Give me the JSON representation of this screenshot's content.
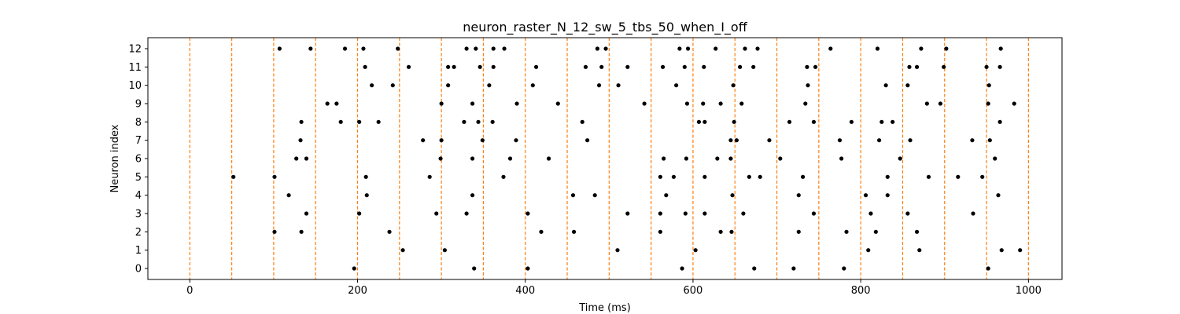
{
  "chart_data": {
    "type": "scatter",
    "title": "neuron_raster_N_12_sw_5_tbs_50_when_I_off",
    "xlabel": "Time (ms)",
    "ylabel": "Neuron index",
    "xlim": [
      -50,
      1040
    ],
    "ylim": [
      -0.6,
      12.6
    ],
    "x_ticks": [
      0,
      200,
      400,
      600,
      800,
      1000
    ],
    "y_ticks": [
      0,
      1,
      2,
      3,
      4,
      5,
      6,
      7,
      8,
      9,
      10,
      11,
      12
    ],
    "grid": false,
    "vlines": {
      "x": [
        0,
        50,
        100,
        150,
        200,
        250,
        300,
        350,
        400,
        450,
        500,
        550,
        600,
        650,
        700,
        750,
        800,
        850,
        900,
        950,
        1000
      ],
      "color": "#ff7f0e",
      "style": "dashed"
    },
    "marker_color": "#000000",
    "spikes": [
      {
        "neuron": 12,
        "times": [
          107,
          144,
          185,
          207,
          248,
          330,
          341,
          362,
          375,
          486,
          496,
          584,
          594,
          627,
          662,
          677,
          764,
          820,
          872,
          902,
          967
        ]
      },
      {
        "neuron": 11,
        "times": [
          209,
          261,
          308,
          315,
          346,
          362,
          413,
          472,
          491,
          522,
          564,
          590,
          613,
          656,
          672,
          736,
          746,
          867,
          858,
          899,
          950,
          966
        ]
      },
      {
        "neuron": 10,
        "times": [
          217,
          242,
          308,
          357,
          409,
          488,
          511,
          580,
          648,
          737,
          830,
          856,
          953
        ]
      },
      {
        "neuron": 9,
        "times": [
          164,
          175,
          300,
          337,
          390,
          439,
          542,
          593,
          612,
          633,
          658,
          734,
          879,
          895,
          952,
          983
        ]
      },
      {
        "neuron": 8,
        "times": [
          133,
          180,
          202,
          225,
          327,
          344,
          361,
          468,
          607,
          614,
          649,
          715,
          744,
          789,
          825,
          838,
          966
        ]
      },
      {
        "neuron": 7,
        "times": [
          132,
          278,
          300,
          349,
          389,
          474,
          645,
          652,
          691,
          775,
          822,
          859,
          933,
          954
        ]
      },
      {
        "neuron": 6,
        "times": [
          127,
          139,
          299,
          337,
          382,
          428,
          565,
          592,
          629,
          645,
          704,
          777,
          847,
          960
        ]
      },
      {
        "neuron": 5,
        "times": [
          52,
          101,
          210,
          286,
          374,
          561,
          577,
          614,
          667,
          680,
          731,
          832,
          881,
          916,
          945
        ]
      },
      {
        "neuron": 4,
        "times": [
          118,
          211,
          337,
          457,
          483,
          568,
          647,
          726,
          806,
          832,
          964
        ]
      },
      {
        "neuron": 3,
        "times": [
          139,
          202,
          294,
          330,
          403,
          522,
          561,
          591,
          614,
          660,
          744,
          812,
          856,
          934
        ]
      },
      {
        "neuron": 2,
        "times": [
          101,
          133,
          238,
          419,
          458,
          561,
          633,
          646,
          726,
          783,
          818,
          867
        ]
      },
      {
        "neuron": 1,
        "times": [
          254,
          304,
          510,
          603,
          809,
          870,
          968,
          990
        ]
      },
      {
        "neuron": 0,
        "times": [
          196,
          339,
          403,
          587,
          673,
          720,
          780,
          952
        ]
      }
    ]
  }
}
